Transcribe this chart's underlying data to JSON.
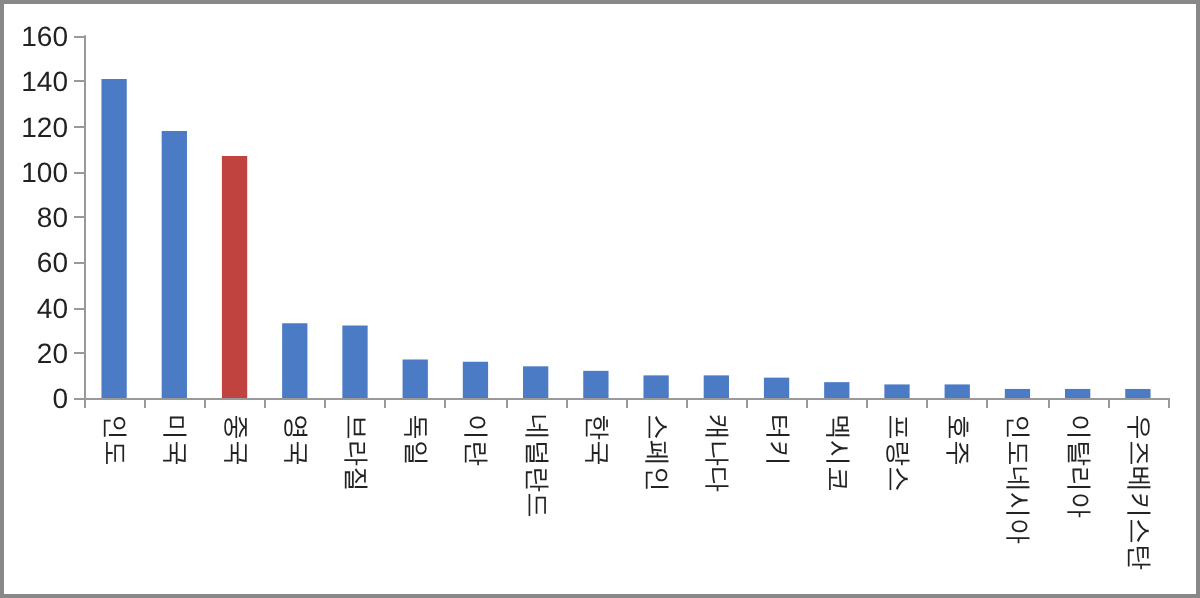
{
  "chart_data": {
    "type": "bar",
    "categories": [
      "인도",
      "미국",
      "중국",
      "영국",
      "브라질",
      "독일",
      "이란",
      "네덜란드",
      "한국",
      "스페인",
      "캐나다",
      "터키",
      "멕시코",
      "프랑스",
      "호주",
      "인도네시아",
      "이탈리아",
      "우즈베키스탄"
    ],
    "values": [
      141,
      118,
      107,
      33,
      32,
      17,
      16,
      14,
      12,
      10,
      10,
      9,
      7,
      6,
      6,
      4,
      4,
      4
    ],
    "colors": [
      "#4a7bc4",
      "#4a7bc4",
      "#c0433f",
      "#4a7bc4",
      "#4a7bc4",
      "#4a7bc4",
      "#4a7bc4",
      "#4a7bc4",
      "#4a7bc4",
      "#4a7bc4",
      "#4a7bc4",
      "#4a7bc4",
      "#4a7bc4",
      "#4a7bc4",
      "#4a7bc4",
      "#4a7bc4",
      "#4a7bc4",
      "#4a7bc4"
    ],
    "ylim": [
      0,
      160
    ],
    "yticks": [
      0,
      20,
      40,
      60,
      80,
      100,
      120,
      140,
      160
    ],
    "grid": false
  }
}
